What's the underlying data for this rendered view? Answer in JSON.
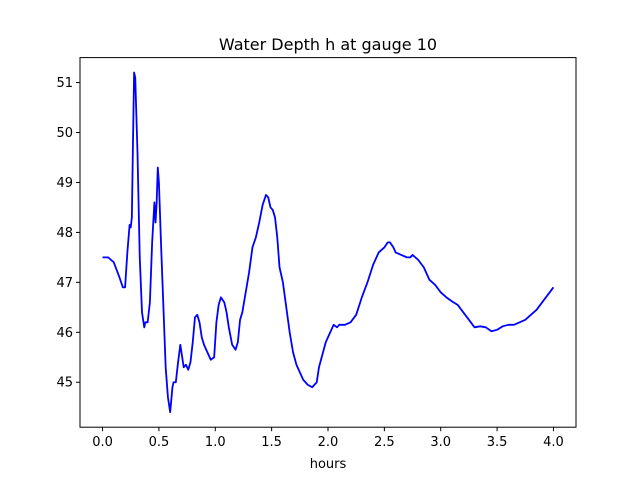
{
  "chart_data": {
    "type": "line",
    "title": "Water Depth h at gauge 10",
    "xlabel": "hours",
    "ylabel": "",
    "xlim": [
      -0.2,
      4.2
    ],
    "ylim": [
      44.1,
      51.5
    ],
    "xticks": [
      0.0,
      0.5,
      1.0,
      1.5,
      2.0,
      2.5,
      3.0,
      3.5,
      4.0
    ],
    "xtick_labels": [
      "0.0",
      "0.5",
      "1.0",
      "1.5",
      "2.0",
      "2.5",
      "3.0",
      "3.5",
      "4.0"
    ],
    "yticks": [
      45,
      46,
      47,
      48,
      49,
      50,
      51
    ],
    "ytick_labels": [
      "45",
      "46",
      "47",
      "48",
      "49",
      "50",
      "51"
    ],
    "grid": false,
    "line_color": "#0000ff",
    "series": [
      {
        "x": [
          0.0,
          0.05,
          0.1,
          0.15,
          0.18,
          0.2,
          0.22,
          0.24,
          0.25,
          0.26,
          0.27,
          0.28,
          0.29,
          0.31,
          0.33,
          0.35,
          0.37,
          0.38,
          0.4,
          0.42,
          0.44,
          0.46,
          0.47,
          0.48,
          0.49,
          0.5,
          0.52,
          0.54,
          0.56,
          0.58,
          0.6,
          0.62,
          0.63,
          0.65,
          0.67,
          0.69,
          0.7,
          0.72,
          0.74,
          0.76,
          0.78,
          0.8,
          0.82,
          0.84,
          0.86,
          0.88,
          0.9,
          0.93,
          0.96,
          0.99,
          1.01,
          1.03,
          1.05,
          1.08,
          1.1,
          1.12,
          1.15,
          1.18,
          1.2,
          1.22,
          1.24,
          1.27,
          1.3,
          1.33,
          1.36,
          1.39,
          1.42,
          1.45,
          1.47,
          1.49,
          1.51,
          1.53,
          1.55,
          1.57,
          1.6,
          1.63,
          1.66,
          1.69,
          1.72,
          1.75,
          1.78,
          1.82,
          1.86,
          1.9,
          1.92,
          1.95,
          1.98,
          2.02,
          2.05,
          2.08,
          2.1,
          2.15,
          2.2,
          2.25,
          2.3,
          2.35,
          2.4,
          2.45,
          2.5,
          2.53,
          2.55,
          2.58,
          2.6,
          2.65,
          2.7,
          2.73,
          2.75,
          2.8,
          2.85,
          2.9,
          2.95,
          3.0,
          3.05,
          3.1,
          3.15,
          3.2,
          3.25,
          3.3,
          3.35,
          3.4,
          3.45,
          3.5,
          3.55,
          3.6,
          3.65,
          3.7,
          3.75,
          3.8,
          3.85,
          3.9,
          3.95,
          4.0
        ],
        "y": [
          47.5,
          47.5,
          47.4,
          47.1,
          46.9,
          46.9,
          47.6,
          48.15,
          48.1,
          48.3,
          49.8,
          51.2,
          51.1,
          49.6,
          47.5,
          46.4,
          46.1,
          46.2,
          46.2,
          46.6,
          47.8,
          48.6,
          48.2,
          48.6,
          49.3,
          49.0,
          47.7,
          46.5,
          45.3,
          44.7,
          44.4,
          44.9,
          45.0,
          45.0,
          45.4,
          45.75,
          45.6,
          45.3,
          45.35,
          45.25,
          45.4,
          45.8,
          46.3,
          46.35,
          46.2,
          45.9,
          45.75,
          45.6,
          45.45,
          45.5,
          46.2,
          46.55,
          46.7,
          46.6,
          46.4,
          46.1,
          45.75,
          45.65,
          45.8,
          46.25,
          46.4,
          46.8,
          47.2,
          47.7,
          47.9,
          48.2,
          48.55,
          48.75,
          48.7,
          48.5,
          48.45,
          48.3,
          47.9,
          47.3,
          47.0,
          46.5,
          46.0,
          45.6,
          45.35,
          45.2,
          45.05,
          44.95,
          44.9,
          45.0,
          45.3,
          45.55,
          45.8,
          46.0,
          46.15,
          46.1,
          46.15,
          46.15,
          46.2,
          46.35,
          46.7,
          47.0,
          47.35,
          47.6,
          47.7,
          47.8,
          47.8,
          47.7,
          47.6,
          47.55,
          47.5,
          47.5,
          47.55,
          47.45,
          47.3,
          47.05,
          46.95,
          46.8,
          46.7,
          46.62,
          46.55,
          46.4,
          46.25,
          46.1,
          46.12,
          46.1,
          46.02,
          46.05,
          46.12,
          46.15,
          46.15,
          46.2,
          46.25,
          46.35,
          46.45,
          46.6,
          46.75,
          46.9
        ]
      }
    ]
  }
}
